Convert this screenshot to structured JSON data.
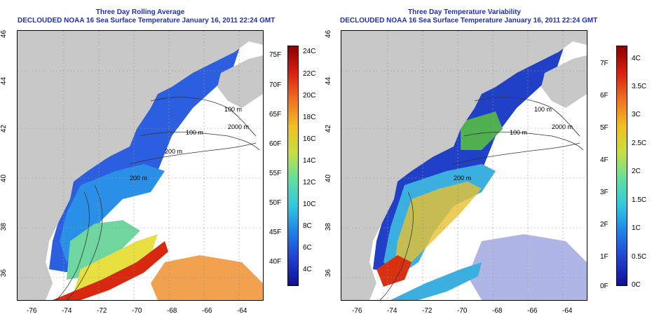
{
  "left_panel": {
    "title": "Three Day Rolling Average",
    "subtitle": "DECLOUDED NOAA 16 Sea Surface Temperature January 16, 2011 22:24 GMT",
    "lon_ticks": [
      "-76",
      "-74",
      "-72",
      "-70",
      "-68",
      "-66",
      "-64"
    ],
    "lat_ticks": [
      "36",
      "38",
      "40",
      "42",
      "44",
      "46"
    ],
    "contours": [
      "100 m",
      "100 m",
      "2000 m",
      "200 m",
      "200 m"
    ],
    "colorbar_c": [
      "24C",
      "22C",
      "20C",
      "18C",
      "16C",
      "14C",
      "12C",
      "10C",
      "8C",
      "6C",
      "4C"
    ],
    "colorbar_f": [
      "75F",
      "70F",
      "65F",
      "60F",
      "55F",
      "50F",
      "45F",
      "40F"
    ]
  },
  "right_panel": {
    "title": "Three Day Temperature Variability",
    "subtitle": "DECLOUDED NOAA 16 Sea Surface Temperature January 16, 2011 22:24 GMT",
    "lon_ticks": [
      "-76",
      "-74",
      "-72",
      "-70",
      "-68",
      "-66",
      "-64"
    ],
    "lat_ticks": [
      "36",
      "38",
      "40",
      "42",
      "44",
      "46"
    ],
    "contours": [
      "100 m",
      "100 m",
      "2000 m",
      "200 m"
    ],
    "colorbar_c": [
      "4C",
      "3.5C",
      "3C",
      "2.5C",
      "2C",
      "1.5C",
      "1C",
      "0.5C",
      "0C"
    ],
    "colorbar_f": [
      "7F",
      "6F",
      "5F",
      "4F",
      "3F",
      "2F",
      "1F",
      "0F"
    ]
  },
  "colors": {
    "title": "#1a2fc8",
    "land": "#c8c8c8",
    "ocean_missing": "#ffffff"
  }
}
